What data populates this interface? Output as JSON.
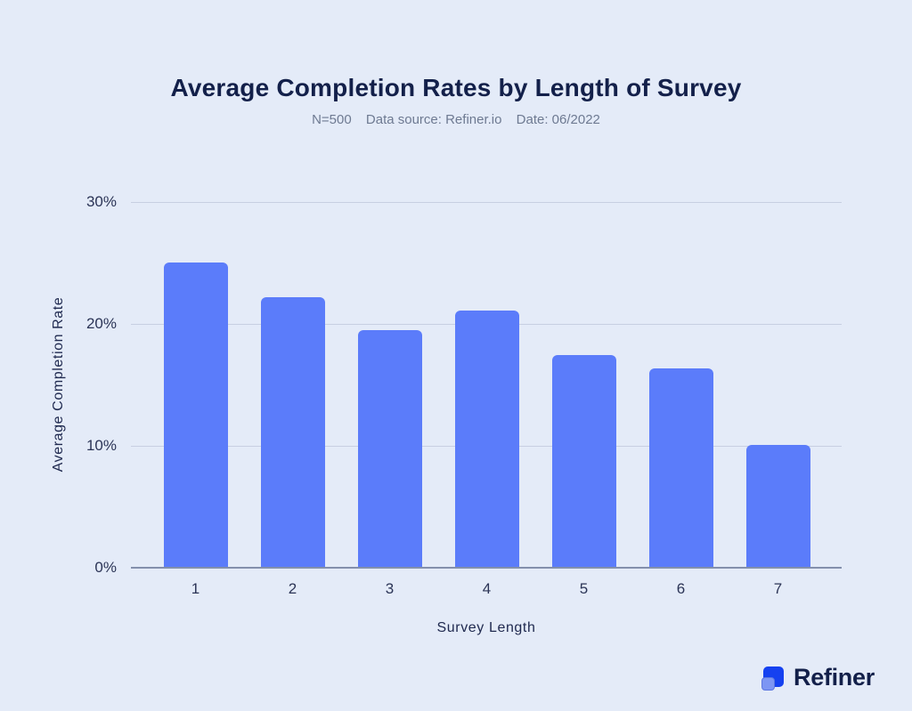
{
  "colors": {
    "background": "#e4ebf8",
    "bar": "#5b7cfa",
    "gridline": "#c7cfe2",
    "axis_line": "#8390ac",
    "title_text": "#13204a",
    "subtitle_text": "#6e7a92",
    "tick_text": "#2b3456",
    "logo_square_big": "#1541f0",
    "logo_square_small": "#7d96f3"
  },
  "header": {
    "title": "Average Completion Rates by Length of Survey",
    "subtitle_parts": [
      "N=500",
      "Data source: Refiner.io",
      "Date: 06/2022"
    ]
  },
  "chart_data": {
    "type": "bar",
    "categories": [
      "1",
      "2",
      "3",
      "4",
      "5",
      "6",
      "7"
    ],
    "values": [
      25,
      22.1,
      19.4,
      21,
      17.4,
      16.3,
      10
    ],
    "title": "Average Completion Rates by Length of Survey",
    "xlabel": "Survey Length",
    "ylabel": "Average Completion Rate",
    "ylim": [
      0,
      30
    ],
    "yticks": [
      {
        "value": 0,
        "label": "0%"
      },
      {
        "value": 10,
        "label": "10%"
      },
      {
        "value": 20,
        "label": "20%"
      },
      {
        "value": 30,
        "label": "30%"
      }
    ],
    "grid": true,
    "legend": false,
    "bar_color": "#5b7cfa"
  },
  "footer": {
    "logo_text": "Refiner"
  }
}
